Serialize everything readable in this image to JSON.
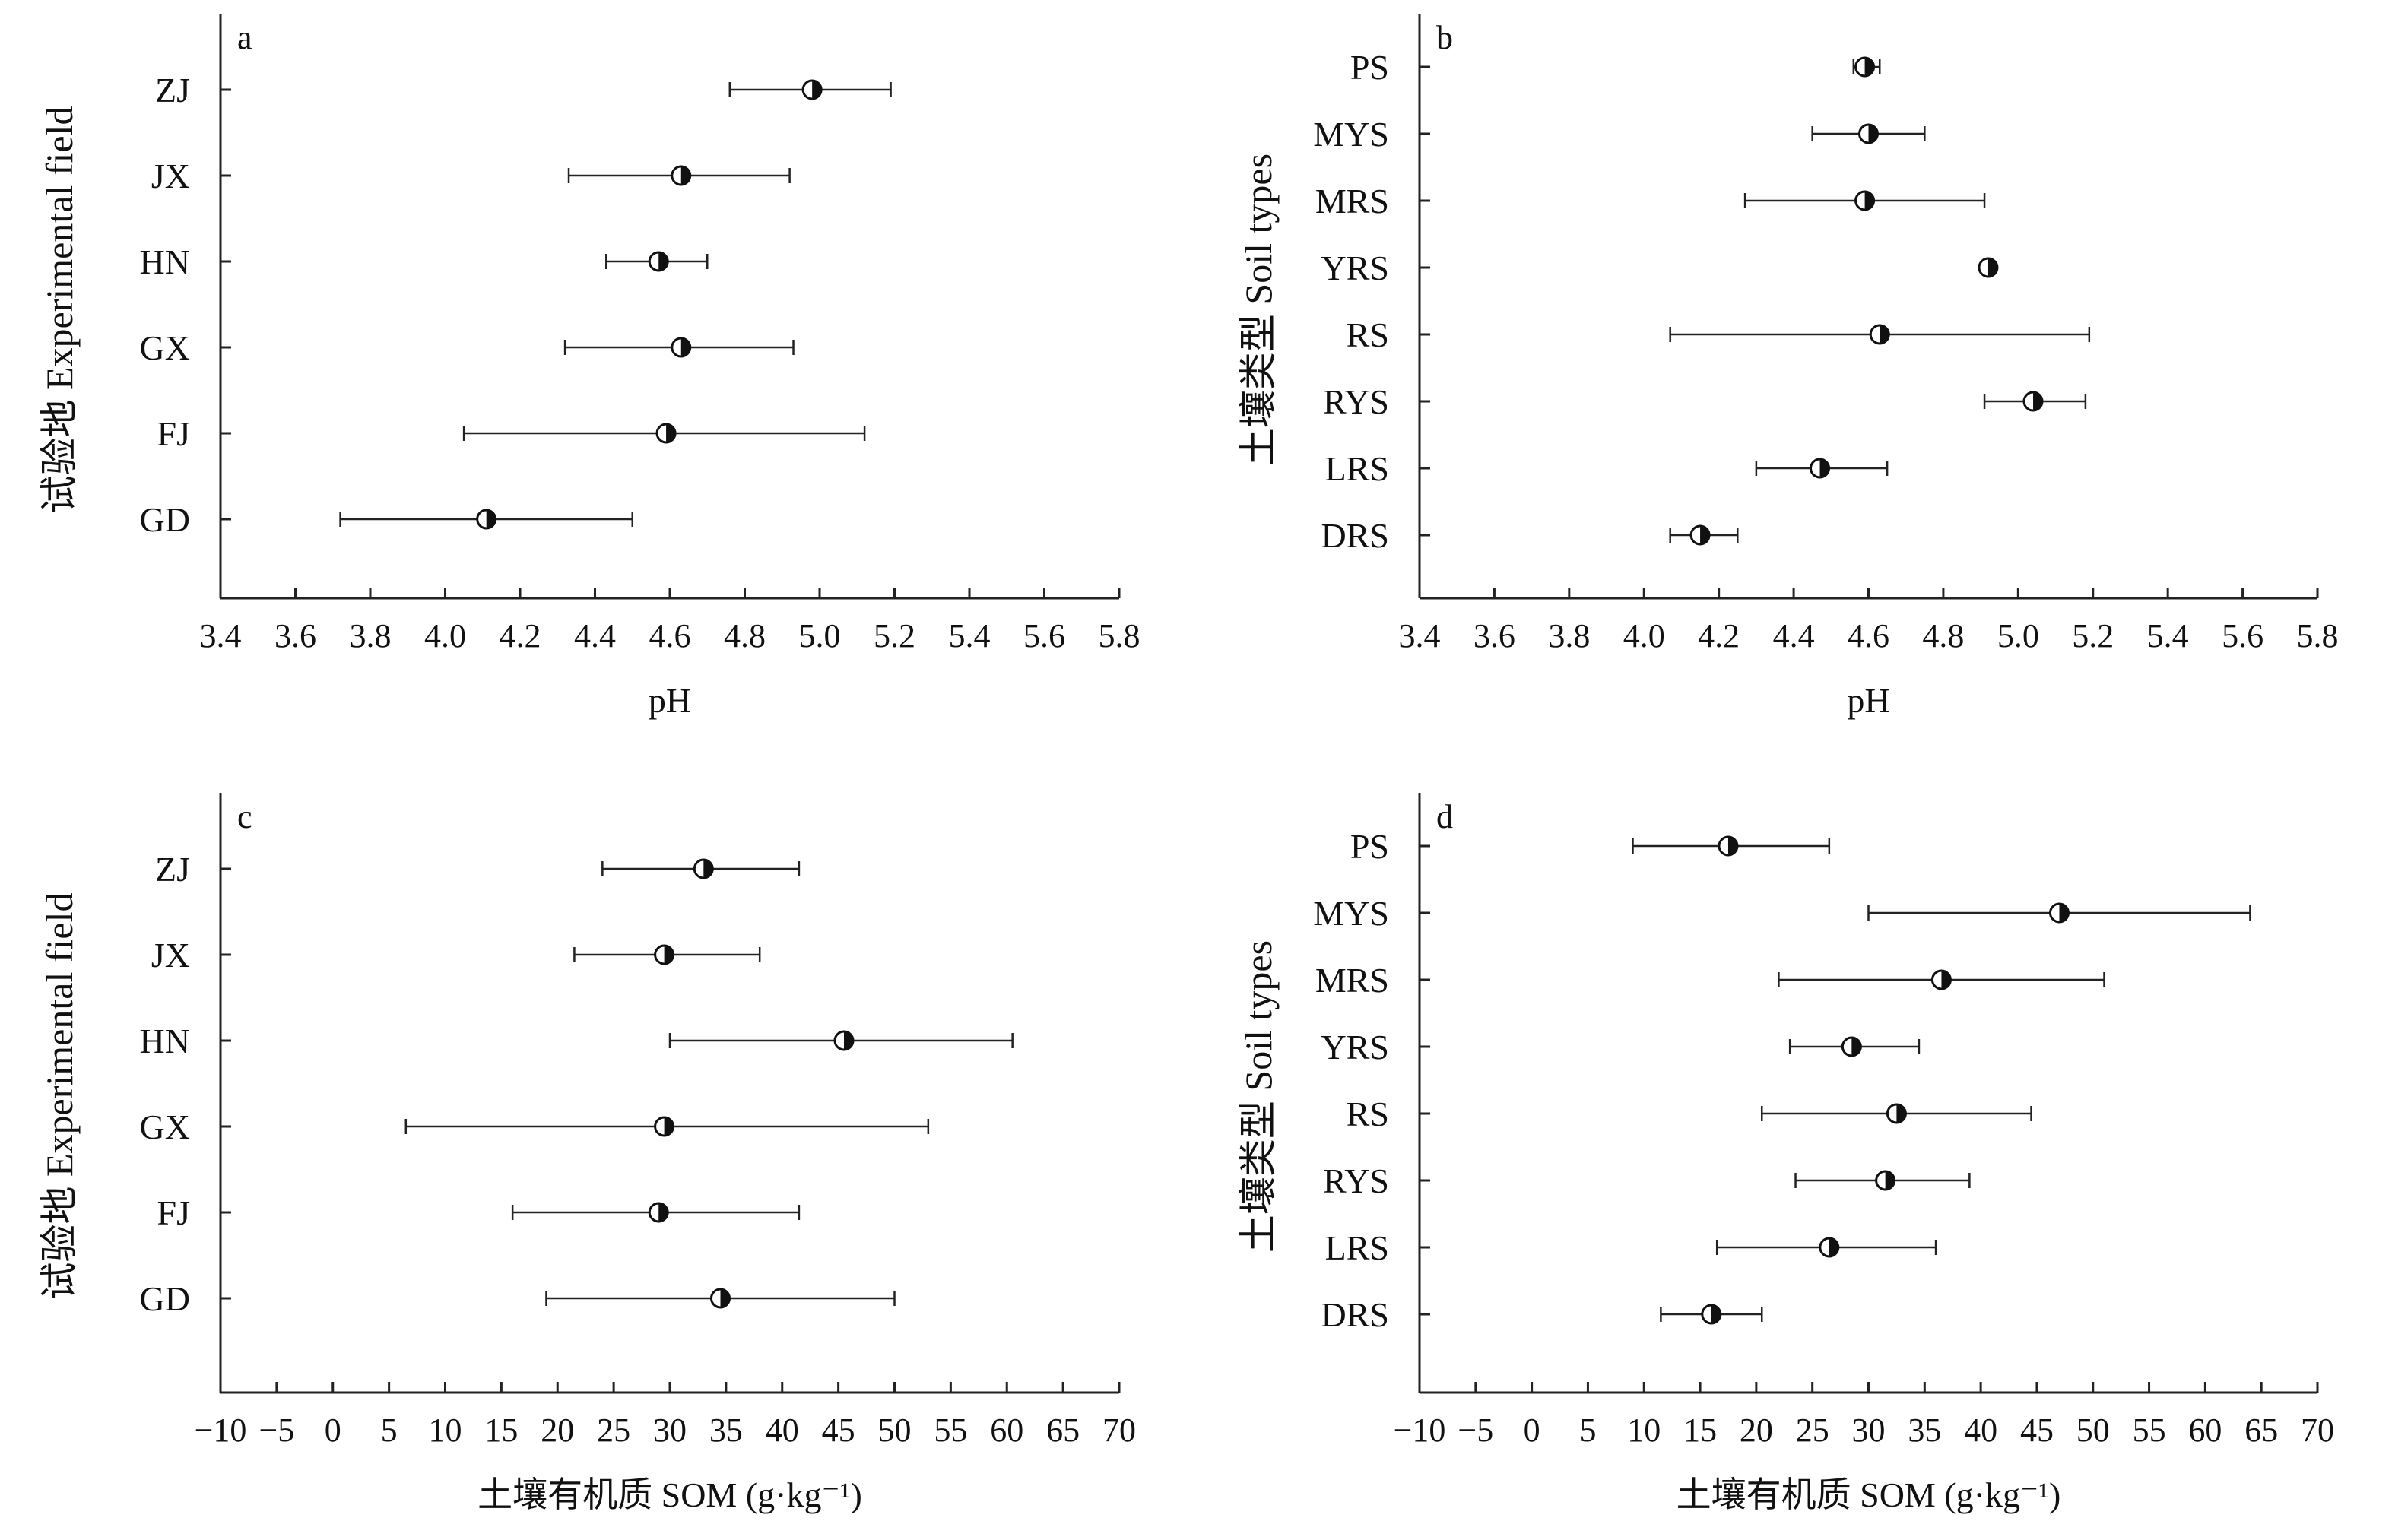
{
  "chart_data": [
    {
      "type": "scatter",
      "panel_label": "a",
      "xlabel": "pH",
      "ylabel": "试验地 Experimental field",
      "xlim": [
        3.4,
        5.8
      ],
      "xticks": [
        "3.4",
        "3.6",
        "3.8",
        "4.0",
        "4.2",
        "4.4",
        "4.6",
        "4.8",
        "5.0",
        "5.2",
        "5.4",
        "5.6",
        "5.8"
      ],
      "categories": [
        "ZJ",
        "JX",
        "HN",
        "GX",
        "FJ",
        "GD"
      ],
      "values": [
        4.98,
        4.63,
        4.57,
        4.63,
        4.59,
        4.11
      ],
      "error_low": [
        4.76,
        4.33,
        4.43,
        4.32,
        4.05,
        3.72
      ],
      "error_high": [
        5.19,
        4.92,
        4.7,
        4.93,
        5.12,
        4.5
      ]
    },
    {
      "type": "scatter",
      "panel_label": "b",
      "xlabel": "pH",
      "ylabel": "土壤类型 Soil types",
      "xlim": [
        3.4,
        5.8
      ],
      "xticks": [
        "3.4",
        "3.6",
        "3.8",
        "4.0",
        "4.2",
        "4.4",
        "4.6",
        "4.8",
        "5.0",
        "5.2",
        "5.4",
        "5.6",
        "5.8"
      ],
      "categories": [
        "PS",
        "MYS",
        "MRS",
        "YRS",
        "RS",
        "RYS",
        "LRS",
        "DRS"
      ],
      "values": [
        4.59,
        4.6,
        4.59,
        4.92,
        4.63,
        5.04,
        4.47,
        4.15
      ],
      "error_low": [
        4.56,
        4.45,
        4.27,
        4.91,
        4.07,
        4.91,
        4.3,
        4.07
      ],
      "error_high": [
        4.63,
        4.75,
        4.91,
        4.93,
        5.19,
        5.18,
        4.65,
        4.25
      ]
    },
    {
      "type": "scatter",
      "panel_label": "c",
      "xlabel": "土壤有机质 SOM (g·kg⁻¹)",
      "ylabel": "试验地 Experimental field",
      "xlim": [
        -10,
        70
      ],
      "xticks": [
        "−10",
        "−5",
        "0",
        "5",
        "10",
        "15",
        "20",
        "25",
        "30",
        "35",
        "40",
        "45",
        "50",
        "55",
        "60",
        "65",
        "70"
      ],
      "categories": [
        "ZJ",
        "JX",
        "HN",
        "GX",
        "FJ",
        "GD"
      ],
      "values": [
        33.0,
        29.5,
        45.5,
        29.5,
        29.0,
        34.5
      ],
      "error_low": [
        24.0,
        21.5,
        30.0,
        6.5,
        16.0,
        19.0
      ],
      "error_high": [
        41.5,
        38.0,
        60.5,
        53.0,
        41.5,
        50.0
      ]
    },
    {
      "type": "scatter",
      "panel_label": "d",
      "xlabel": "土壤有机质 SOM (g·kg⁻¹)",
      "ylabel": "土壤类型 Soil types",
      "xlim": [
        -10,
        70
      ],
      "xticks": [
        "−10",
        "−5",
        "0",
        "5",
        "10",
        "15",
        "20",
        "25",
        "30",
        "35",
        "40",
        "45",
        "50",
        "55",
        "60",
        "65",
        "70"
      ],
      "categories": [
        "PS",
        "MYS",
        "MRS",
        "YRS",
        "RS",
        "RYS",
        "LRS",
        "DRS"
      ],
      "values": [
        17.5,
        47.0,
        36.5,
        28.5,
        32.5,
        31.5,
        26.5,
        16.0
      ],
      "error_low": [
        9.0,
        30.0,
        22.0,
        23.0,
        20.5,
        23.5,
        16.5,
        11.5
      ],
      "error_high": [
        26.5,
        64.0,
        51.0,
        34.5,
        44.5,
        39.0,
        36.0,
        20.5
      ]
    }
  ]
}
